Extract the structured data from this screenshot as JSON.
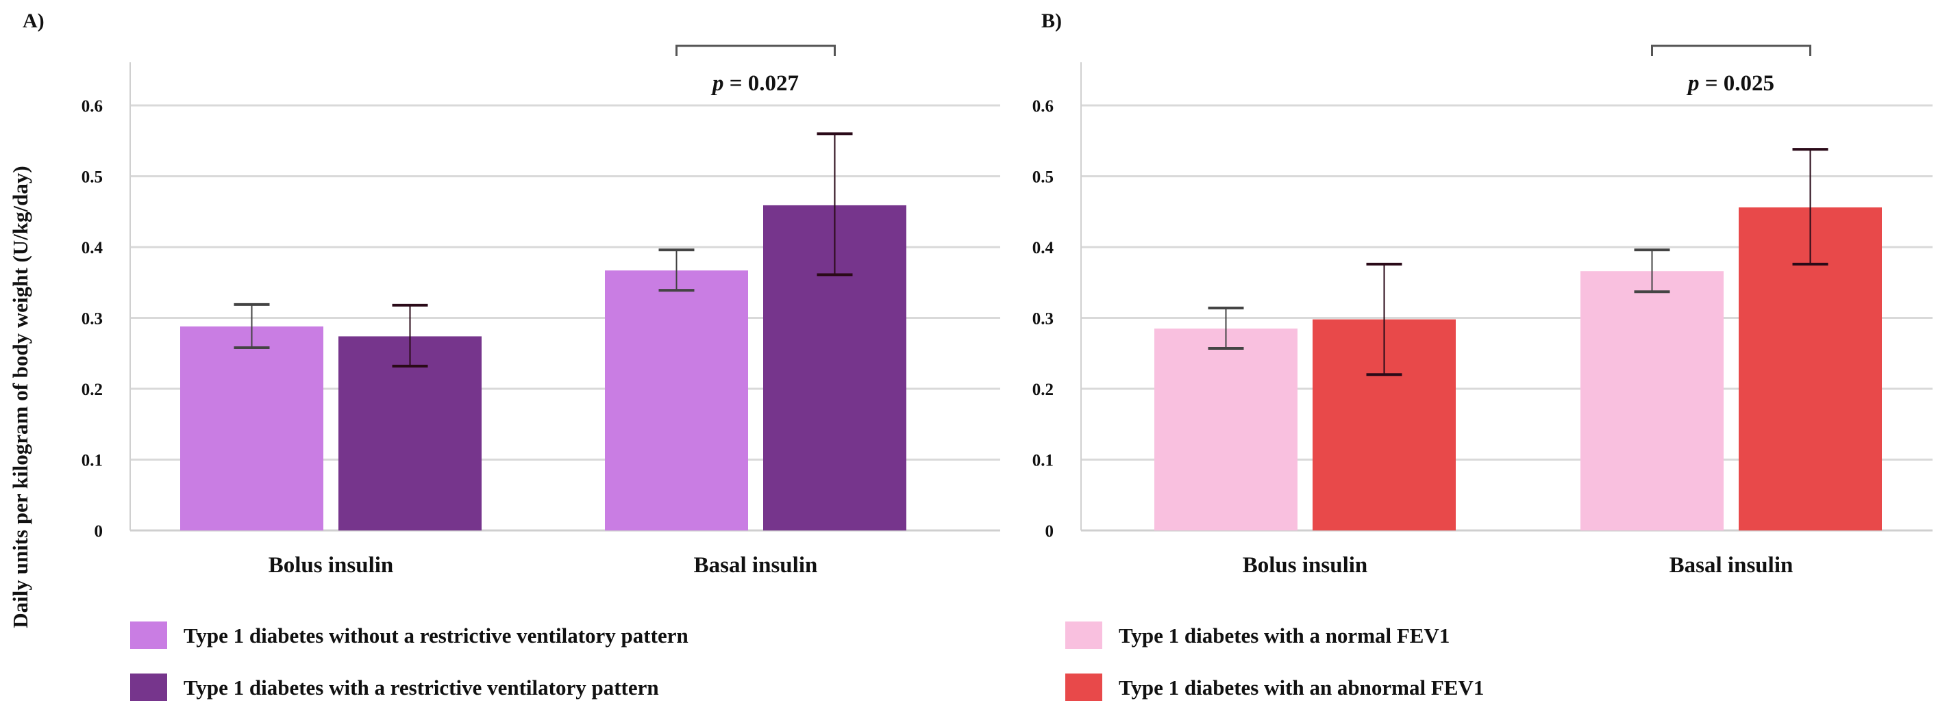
{
  "y_axis_label": "Daily units per kilogram of body weight (U/kg/day)",
  "chart_data": [
    {
      "type": "bar",
      "panel_label": "A)",
      "categories": [
        "Bolus insulin",
        "Basal insulin"
      ],
      "ylim": [
        0,
        0.65
      ],
      "yticks": [
        "0",
        "0.1",
        "0.2",
        "0.3",
        "0.4",
        "0.5",
        "0.6"
      ],
      "grid": true,
      "legend_placement": "bottom",
      "series": [
        {
          "name": "Type 1 diabetes without a restrictive ventilatory pattern",
          "color": "#c97de3",
          "values": [
            0.288,
            0.367
          ],
          "err_low": [
            0.258,
            0.339
          ],
          "err_high": [
            0.319,
            0.396
          ]
        },
        {
          "name": "Type 1 diabetes with a restrictive ventilatory pattern",
          "color": "#76358c",
          "values": [
            0.274,
            0.459
          ],
          "err_low": [
            0.232,
            0.361
          ],
          "err_high": [
            0.318,
            0.56
          ]
        }
      ],
      "annotation": {
        "category": "Basal insulin",
        "p_prefix": "p",
        "p_text": " = 0.027"
      }
    },
    {
      "type": "bar",
      "panel_label": "B)",
      "categories": [
        "Bolus insulin",
        "Basal insulin"
      ],
      "ylim": [
        0,
        0.65
      ],
      "yticks": [
        "0",
        "0.1",
        "0.2",
        "0.3",
        "0.4",
        "0.5",
        "0.6"
      ],
      "grid": true,
      "legend_placement": "bottom",
      "series": [
        {
          "name": "Type 1 diabetes with a normal FEV1",
          "color": "#f9c0df",
          "values": [
            0.285,
            0.366
          ],
          "err_low": [
            0.257,
            0.337
          ],
          "err_high": [
            0.314,
            0.396
          ]
        },
        {
          "name": "Type 1 diabetes with an abnormal FEV1",
          "color": "#e8494a",
          "values": [
            0.298,
            0.456
          ],
          "err_low": [
            0.22,
            0.376
          ],
          "err_high": [
            0.376,
            0.538
          ]
        }
      ],
      "annotation": {
        "category": "Basal insulin",
        "p_prefix": "p",
        "p_text": " = 0.025"
      }
    }
  ]
}
